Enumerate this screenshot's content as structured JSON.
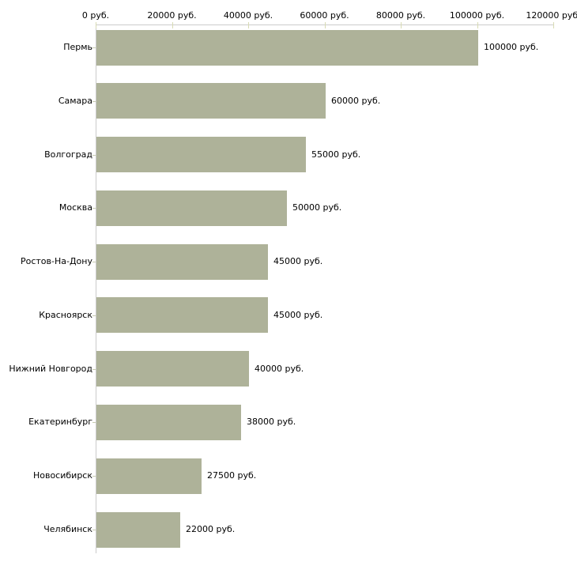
{
  "chart_data": {
    "type": "bar",
    "orientation": "horizontal",
    "title": "",
    "xlabel": "",
    "ylabel": "",
    "unit": "руб.",
    "categories": [
      "Пермь",
      "Самара",
      "Волгоград",
      "Москва",
      "Ростов-На-Дону",
      "Красноярск",
      "Нижний Новгород",
      "Екатеринбург",
      "Новосибирск",
      "Челябинск"
    ],
    "values": [
      100000,
      60000,
      55000,
      50000,
      45000,
      45000,
      40000,
      38000,
      27500,
      22000
    ],
    "value_labels": [
      "100000 руб.",
      "60000 руб.",
      "55000 руб.",
      "50000 руб.",
      "45000 руб.",
      "45000 руб.",
      "40000 руб.",
      "38000 руб.",
      "27500 руб.",
      "22000 руб."
    ],
    "xlim": [
      0,
      120000
    ],
    "x_ticks": [
      0,
      20000,
      40000,
      60000,
      80000,
      100000,
      120000
    ],
    "x_tick_labels": [
      "0 руб.",
      "20000 руб.",
      "40000 руб.",
      "60000 руб.",
      "80000 руб.",
      "100000 руб.",
      "120000 руб."
    ],
    "grid": false,
    "legend": false,
    "axis_position": "top",
    "colors": {
      "bar": "#aeb299",
      "axis_line": "#cbcbcb",
      "x_tick_mark": "#d8dbb4",
      "y_tick_mark": "#c6cab0",
      "text": "#000000",
      "background": "#ffffff"
    }
  }
}
